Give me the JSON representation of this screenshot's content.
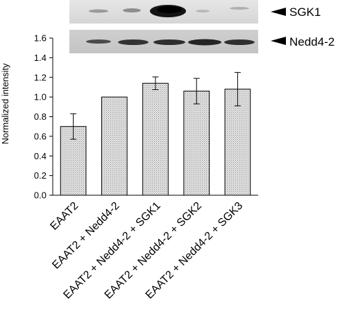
{
  "blots": [
    {
      "label": "SGK1",
      "arrow_icon": "left-triangle-icon"
    },
    {
      "label": "Nedd4-2",
      "arrow_icon": "left-triangle-icon"
    }
  ],
  "chart_data": {
    "type": "bar",
    "title": "",
    "xlabel": "",
    "ylabel": "Normalized intensity",
    "ylim": [
      0,
      1.6
    ],
    "yticks": [
      "0.0",
      "0.2",
      "0.4",
      "0.6",
      "0.8",
      "1.0",
      "1.2",
      "1.4",
      "1.6"
    ],
    "grid": false,
    "categories": [
      "EAAT2",
      "EAAT2 + Nedd4-2",
      "EAAT2 + Nedd4-2 + SGK1",
      "EAAT2 + Nedd4-2 + SGK2",
      "EAAT2 + Nedd4-2 + SGK3"
    ],
    "values": [
      0.7,
      1.0,
      1.14,
      1.06,
      1.08
    ],
    "errors": [
      0.13,
      0.0,
      0.065,
      0.13,
      0.17
    ],
    "bar_fill": "#d4d4d4",
    "bar_pattern": "dotted-grey"
  }
}
